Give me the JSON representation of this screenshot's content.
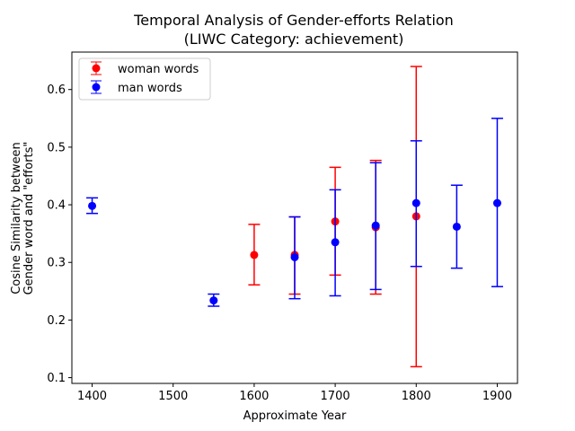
{
  "chart_data": {
    "type": "scatter",
    "title": "Temporal Analysis of Gender-efforts Relation",
    "subtitle": "(LIWC Category: achievement)",
    "xlabel": "Approximate Year",
    "ylabel_line1": "Cosine Similarity between",
    "ylabel_line2": "Gender word and \"efforts\"",
    "xlim": [
      1375,
      1925
    ],
    "ylim": [
      0.09,
      0.665
    ],
    "xticks": [
      1400,
      1500,
      1600,
      1700,
      1800,
      1900
    ],
    "yticks": [
      0.1,
      0.2,
      0.3,
      0.4,
      0.5,
      0.6
    ],
    "ytick_labels": [
      "0.1",
      "0.2",
      "0.3",
      "0.4",
      "0.5",
      "0.6"
    ],
    "legend_position": "top-left",
    "grid": false,
    "series": [
      {
        "name": "woman words",
        "color": "#ff0000",
        "points": [
          {
            "x": 1600,
            "y": 0.313,
            "low": 0.261,
            "high": 0.366
          },
          {
            "x": 1650,
            "y": 0.313,
            "low": 0.245,
            "high": 0.379
          },
          {
            "x": 1700,
            "y": 0.371,
            "low": 0.278,
            "high": 0.465
          },
          {
            "x": 1750,
            "y": 0.361,
            "low": 0.245,
            "high": 0.477
          },
          {
            "x": 1800,
            "y": 0.38,
            "low": 0.119,
            "high": 0.64
          }
        ]
      },
      {
        "name": "man words",
        "color": "#0000ff",
        "points": [
          {
            "x": 1400,
            "y": 0.398,
            "low": 0.385,
            "high": 0.412
          },
          {
            "x": 1550,
            "y": 0.234,
            "low": 0.224,
            "high": 0.245
          },
          {
            "x": 1650,
            "y": 0.309,
            "low": 0.237,
            "high": 0.379
          },
          {
            "x": 1700,
            "y": 0.335,
            "low": 0.242,
            "high": 0.426
          },
          {
            "x": 1750,
            "y": 0.364,
            "low": 0.253,
            "high": 0.473
          },
          {
            "x": 1800,
            "y": 0.403,
            "low": 0.293,
            "high": 0.511
          },
          {
            "x": 1850,
            "y": 0.362,
            "low": 0.29,
            "high": 0.434
          },
          {
            "x": 1900,
            "y": 0.403,
            "low": 0.258,
            "high": 0.55
          }
        ]
      }
    ]
  }
}
